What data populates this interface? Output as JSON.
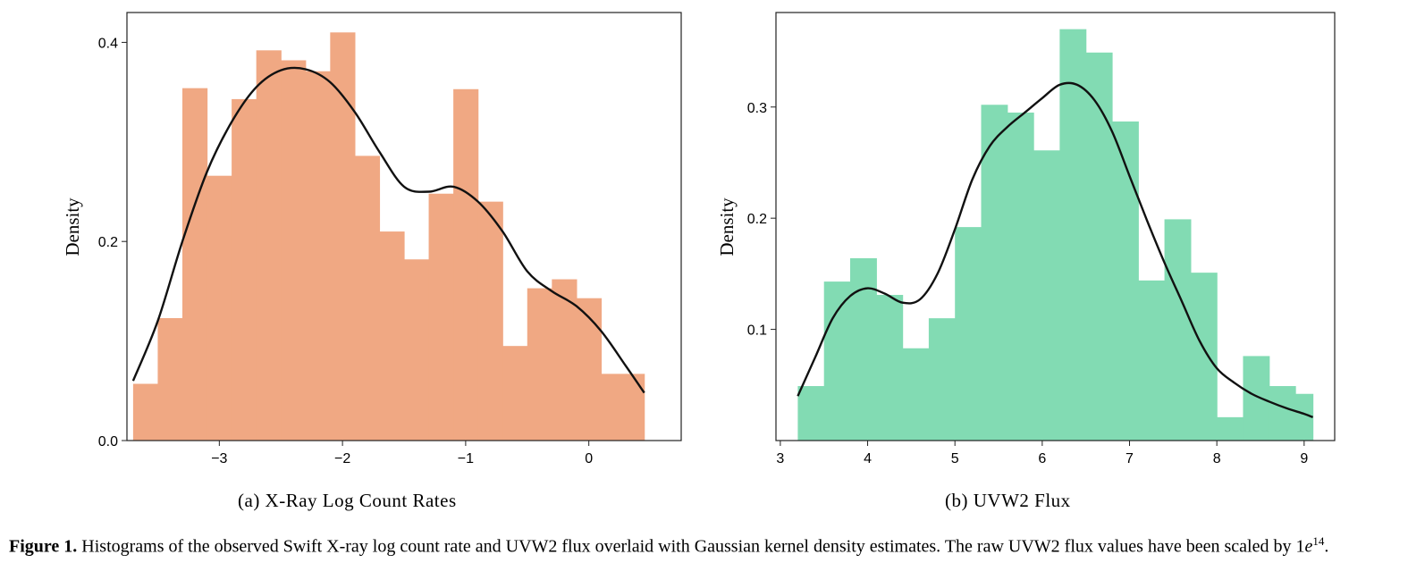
{
  "chart_data": [
    {
      "type": "bar",
      "subtype": "histogram",
      "ylabel": "Density",
      "xlim": [
        -3.75,
        0.75
      ],
      "ylim": [
        0.0,
        0.43
      ],
      "xticks": [
        -3,
        -2,
        -1,
        0
      ],
      "xtick_labels": [
        "−3",
        "−2",
        "−1",
        "0"
      ],
      "yticks": [
        0.0,
        0.2,
        0.4
      ],
      "ytick_labels": [
        "0.0",
        "0.2",
        "0.4"
      ],
      "color": "#f0a883",
      "bin_edges": [
        -3.7,
        -3.5,
        -3.3,
        -3.1,
        -2.9,
        -2.7,
        -2.5,
        -2.3,
        -2.1,
        -1.9,
        -1.7,
        -1.5,
        -1.3,
        -1.1,
        -0.9,
        -0.7,
        -0.5,
        -0.3,
        -0.1,
        0.1,
        0.3,
        0.45
      ],
      "values": [
        0.057,
        0.123,
        0.354,
        0.266,
        0.343,
        0.392,
        0.382,
        0.371,
        0.41,
        0.286,
        0.21,
        0.182,
        0.248,
        0.353,
        0.24,
        0.095,
        0.153,
        0.162,
        0.143,
        0.067,
        0.067
      ],
      "kde": {
        "color": "#111111",
        "x": [
          -3.7,
          -3.5,
          -3.3,
          -3.1,
          -2.9,
          -2.7,
          -2.5,
          -2.3,
          -2.1,
          -1.9,
          -1.7,
          -1.5,
          -1.3,
          -1.1,
          -0.9,
          -0.7,
          -0.5,
          -0.3,
          -0.1,
          0.1,
          0.3,
          0.45
        ],
        "y": [
          0.06,
          0.12,
          0.2,
          0.27,
          0.32,
          0.355,
          0.372,
          0.373,
          0.36,
          0.33,
          0.29,
          0.255,
          0.25,
          0.255,
          0.24,
          0.21,
          0.17,
          0.15,
          0.135,
          0.11,
          0.075,
          0.048
        ]
      }
    },
    {
      "type": "bar",
      "subtype": "histogram",
      "ylabel": "Density",
      "xlim": [
        2.95,
        9.35
      ],
      "ylim": [
        0.0,
        0.385
      ],
      "xticks": [
        3,
        4,
        5,
        6,
        7,
        8,
        9
      ],
      "xtick_labels": [
        "3",
        "4",
        "5",
        "6",
        "7",
        "8",
        "9"
      ],
      "yticks": [
        0.1,
        0.2,
        0.3
      ],
      "ytick_labels": [
        "0.1",
        "0.2",
        "0.3"
      ],
      "color": "#82dbb3",
      "bin_edges": [
        3.2,
        3.5,
        3.8,
        4.1,
        4.4,
        4.7,
        5.0,
        5.3,
        5.6,
        5.9,
        6.2,
        6.5,
        6.8,
        7.1,
        7.4,
        7.7,
        8.0,
        8.3,
        8.6,
        8.9,
        9.1
      ],
      "values": [
        0.049,
        0.143,
        0.164,
        0.131,
        0.083,
        0.11,
        0.192,
        0.302,
        0.295,
        0.261,
        0.37,
        0.349,
        0.287,
        0.144,
        0.199,
        0.151,
        0.021,
        0.076,
        0.049,
        0.042
      ],
      "kde": {
        "color": "#111111",
        "x": [
          3.2,
          3.4,
          3.6,
          3.8,
          4.0,
          4.2,
          4.4,
          4.6,
          4.8,
          5.0,
          5.2,
          5.4,
          5.6,
          5.8,
          6.0,
          6.2,
          6.4,
          6.6,
          6.8,
          7.0,
          7.2,
          7.4,
          7.6,
          7.8,
          8.0,
          8.2,
          8.4,
          8.6,
          8.8,
          9.0,
          9.1
        ],
        "y": [
          0.04,
          0.075,
          0.11,
          0.13,
          0.137,
          0.132,
          0.124,
          0.127,
          0.15,
          0.19,
          0.235,
          0.265,
          0.282,
          0.295,
          0.308,
          0.32,
          0.32,
          0.306,
          0.278,
          0.238,
          0.198,
          0.16,
          0.125,
          0.09,
          0.065,
          0.052,
          0.042,
          0.035,
          0.029,
          0.024,
          0.021
        ]
      }
    }
  ],
  "subcaptions": [
    "(a) X-Ray Log Count Rates",
    "(b) UVW2 Flux"
  ],
  "caption": {
    "label": "Figure 1.",
    "text": " Histograms of the observed Swift X-ray log count rate and UVW2 flux overlaid with Gaussian kernel density estimates. The raw UVW2 flux values have been scaled by ",
    "base": "1",
    "var": "e",
    "exp": "14",
    "end": "."
  }
}
